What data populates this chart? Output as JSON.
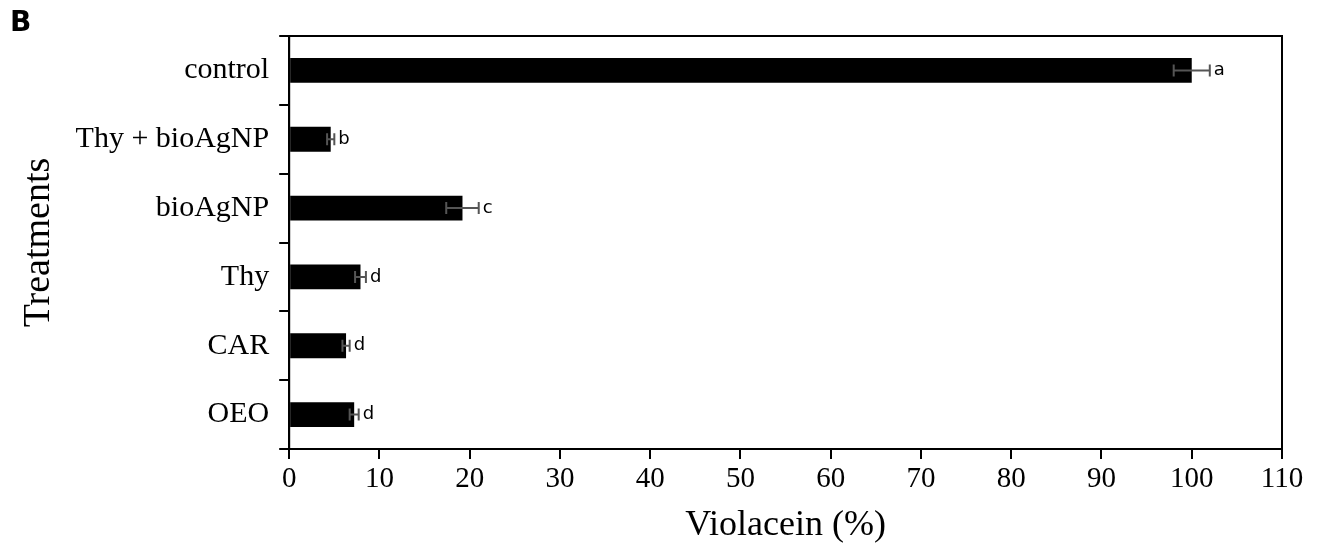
{
  "chart_data": {
    "type": "bar",
    "orientation": "horizontal",
    "xlabel": "Violacein (%)",
    "ylabel": "Treatments",
    "categories": [
      "control",
      "Thy + bioAgNP",
      "bioAgNP",
      "Thy",
      "CAR",
      "OEO"
    ],
    "values": [
      100,
      4.6,
      19.2,
      7.9,
      6.3,
      7.2
    ],
    "errors": [
      2,
      0.4,
      1.8,
      0.6,
      0.4,
      0.5
    ],
    "color": "#000000",
    "xlim": [
      0,
      110
    ],
    "xticks": [
      0,
      10,
      20,
      30,
      40,
      50,
      60,
      70,
      80,
      90,
      100,
      110
    ],
    "grid": false,
    "legend": false,
    "annotations": [
      "B",
      {
        "text": "a",
        "x": 102,
        "y": "control"
      },
      {
        "text": "b",
        "x": 5,
        "y": "Thy + bioAgNP"
      },
      {
        "text": "c",
        "x": 21,
        "y": "bioAgNP"
      },
      {
        "text": "d",
        "x": 8.5,
        "y": "Thy"
      },
      {
        "text": "d",
        "x": 6.7,
        "y": "CAR"
      },
      {
        "text": "d",
        "x": 7.7,
        "y": "OEO"
      }
    ]
  }
}
